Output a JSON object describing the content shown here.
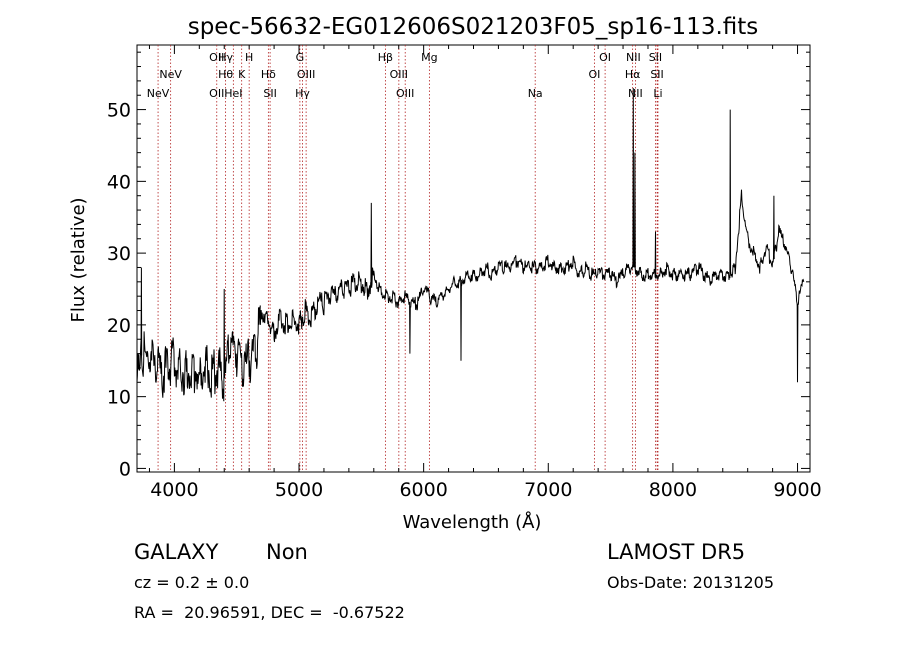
{
  "chart_data": {
    "type": "line",
    "title": "spec-56632-EG012606S021203F05_sp16-113.fits",
    "xlabel": "Wavelength (Å)",
    "ylabel": "Flux (relative)",
    "xlim": [
      3700,
      9100
    ],
    "ylim": [
      -0.5,
      59
    ],
    "xticks": [
      4000,
      5000,
      6000,
      7000,
      8000,
      9000
    ],
    "yticks": [
      0,
      10,
      20,
      30,
      40,
      50
    ],
    "grid": false,
    "series": [
      {
        "x": [
          3700,
          3750,
          3800,
          3850,
          3900,
          3950,
          4000,
          4050,
          4100,
          4150,
          4200,
          4250,
          4300,
          4350,
          4400,
          4450,
          4500,
          4550,
          4600,
          4650,
          4700,
          4750,
          4800,
          4850,
          4900,
          4950,
          5000,
          5050,
          5100,
          5150,
          5200,
          5250,
          5300,
          5350,
          5400,
          5450,
          5500,
          5550,
          5600,
          5650,
          5700,
          5750,
          5800,
          5850,
          5900,
          5950,
          6000,
          6050,
          6100,
          6150,
          6200,
          6250,
          6300,
          6350,
          6400,
          6450,
          6500,
          6550,
          6600,
          6650,
          6700,
          6750,
          6800,
          6850,
          6900,
          6950,
          7000,
          7050,
          7100,
          7150,
          7200,
          7250,
          7300,
          7350,
          7400,
          7450,
          7500,
          7550,
          7600,
          7650,
          7700,
          7750,
          7800,
          7850,
          7900,
          7950,
          8000,
          8050,
          8100,
          8150,
          8200,
          8250,
          8300,
          8350,
          8400,
          8450,
          8500,
          8550,
          8600,
          8650,
          8700,
          8750,
          8800,
          8850,
          8900,
          8950,
          9000,
          9050
        ],
        "values": [
          12,
          16,
          15,
          14,
          13,
          14,
          15,
          14,
          13,
          14,
          13,
          15,
          13,
          14,
          12,
          17,
          16,
          14,
          15,
          16,
          22,
          21,
          19,
          21,
          20,
          21,
          20,
          22,
          21,
          23,
          23,
          24,
          24,
          25,
          25,
          26,
          26,
          25,
          27,
          25,
          24,
          24,
          23,
          24,
          23,
          23,
          25,
          24,
          23,
          24,
          25,
          26,
          26,
          27,
          27,
          27,
          28,
          27,
          28,
          28,
          28,
          29,
          28,
          28,
          28,
          28,
          29,
          28,
          28,
          28,
          29,
          27,
          28,
          27,
          27,
          27,
          27,
          26,
          27,
          28,
          28,
          27,
          27,
          27,
          27,
          28,
          27,
          27,
          27,
          27,
          28,
          27,
          26,
          27,
          27,
          27,
          28,
          38,
          32,
          30,
          28,
          31,
          28,
          33,
          31,
          28,
          23,
          26
        ]
      }
    ],
    "spikes": [
      {
        "x": 3735,
        "y": 28
      },
      {
        "x": 4400,
        "y": 25
      },
      {
        "x": 4690,
        "y": 20
      },
      {
        "x": 5580,
        "y": 37
      },
      {
        "x": 5890,
        "y": 16
      },
      {
        "x": 6300,
        "y": 15
      },
      {
        "x": 7682,
        "y": 53
      },
      {
        "x": 7695,
        "y": 44
      },
      {
        "x": 7860,
        "y": 33
      },
      {
        "x": 8460,
        "y": 50
      },
      {
        "x": 8810,
        "y": 38
      },
      {
        "x": 9000,
        "y": 12
      }
    ],
    "lines": [
      {
        "x": 3869,
        "label": "NeV",
        "row": 2
      },
      {
        "x": 3970,
        "label": "NeV",
        "row": 1
      },
      {
        "x": 4340,
        "label": "OII",
        "row": 0
      },
      {
        "x": 4340,
        "label": "OII",
        "row": 2
      },
      {
        "x": 4411,
        "label": "Hγ",
        "row": 0
      },
      {
        "x": 4411,
        "label": "Hθ",
        "row": 1
      },
      {
        "x": 4473,
        "label": "HeI",
        "row": 2
      },
      {
        "x": 4540,
        "label": "K",
        "row": 1
      },
      {
        "x": 4600,
        "label": "H",
        "row": 0
      },
      {
        "x": 4754,
        "label": "Hδ",
        "row": 1
      },
      {
        "x": 4768,
        "label": "SII",
        "row": 2
      },
      {
        "x": 5007,
        "label": "G",
        "row": 0
      },
      {
        "x": 5028,
        "label": "Hγ",
        "row": 2
      },
      {
        "x": 5057,
        "label": "OIII",
        "row": 1
      },
      {
        "x": 5693,
        "label": "Hβ",
        "row": 0
      },
      {
        "x": 5801,
        "label": "OIII",
        "row": 1
      },
      {
        "x": 5852,
        "label": "OIII",
        "row": 2
      },
      {
        "x": 6046,
        "label": "Mg",
        "row": 0
      },
      {
        "x": 6895,
        "label": "Na",
        "row": 2
      },
      {
        "x": 7370,
        "label": "OI",
        "row": 1
      },
      {
        "x": 7456,
        "label": "OI",
        "row": 0
      },
      {
        "x": 7677,
        "label": "Hα",
        "row": 1
      },
      {
        "x": 7683,
        "label": "NII",
        "row": 0
      },
      {
        "x": 7699,
        "label": "NII",
        "row": 2
      },
      {
        "x": 7860,
        "label": "SII",
        "row": 0
      },
      {
        "x": 7873,
        "label": "SII",
        "row": 1
      },
      {
        "x": 7880,
        "label": "Li",
        "row": 2
      }
    ]
  },
  "info": {
    "class": "GALAXY",
    "subclass": "Non",
    "survey": "LAMOST DR5",
    "cz": "cz = 0.2 ± 0.0",
    "obs_date": "Obs-Date: 20131205",
    "coords": "RA =  20.96591, DEC =  -0.67522"
  }
}
